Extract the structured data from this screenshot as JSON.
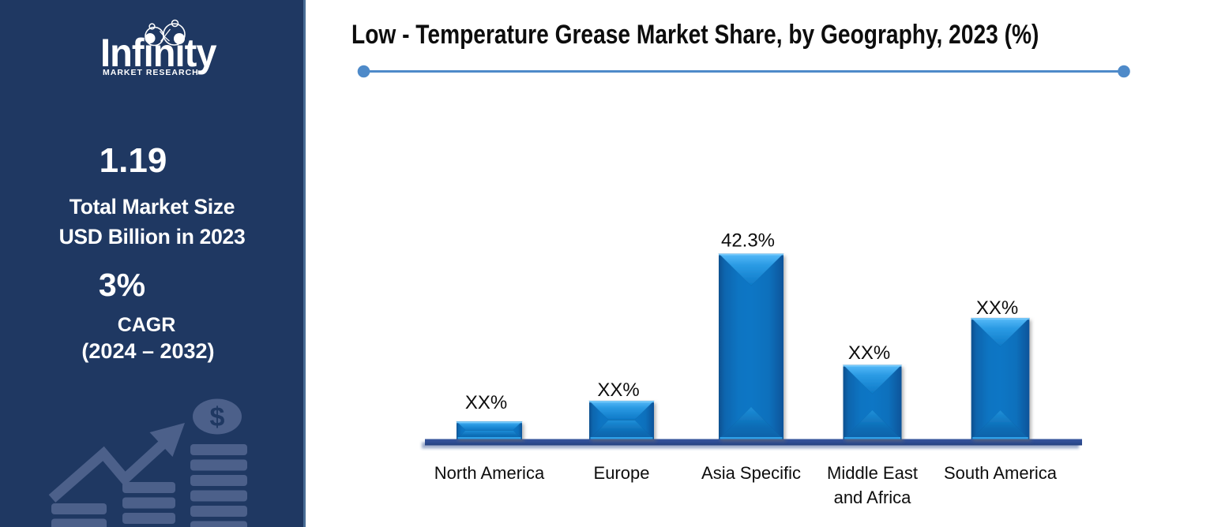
{
  "sidebar": {
    "brand": "Infinity",
    "tagline": "MARKET RESEARCH",
    "stat_market_size": {
      "value": "1.19",
      "label_line1": "Total Market Size",
      "label_line2": "USD Billion in 2023"
    },
    "stat_cagr": {
      "value": "3%",
      "label_line1": "CAGR",
      "label_line2": "(2024 – 2032)"
    },
    "decor": {
      "dollar_symbol": "$"
    },
    "colors": {
      "background": "#1F3862",
      "border": "#4A6D96",
      "decor": "#4C608A",
      "text": "#FFFFFF"
    }
  },
  "main": {
    "title": "Low - Temperature Grease Market Share, by Geography, 2023 (%)"
  },
  "chart_data": {
    "type": "bar",
    "title": "Low - Temperature Grease Market Share, by Geography, 2023 (%)",
    "categories": [
      "North America",
      "Europe",
      "Asia Specific",
      "Middle East and Africa",
      "South America"
    ],
    "category_lines": [
      [
        "North America"
      ],
      [
        "Europe"
      ],
      [
        "Asia Specific"
      ],
      [
        "Middle East",
        "and Africa"
      ],
      [
        "South America"
      ]
    ],
    "values": [
      4.0,
      8.7,
      42.3,
      16.9,
      27.6
    ],
    "labels": [
      "XX%",
      "XX%",
      "42.3%",
      "XX%",
      "XX%"
    ],
    "unit": "%",
    "ylim": [
      0,
      42.3
    ],
    "grid": false,
    "legend": false,
    "bar_color": "#0C74C2",
    "bar_bevel_light": "#58BBF9",
    "axis_color": "#2E4D92",
    "label_color": "#0D0D0D"
  }
}
